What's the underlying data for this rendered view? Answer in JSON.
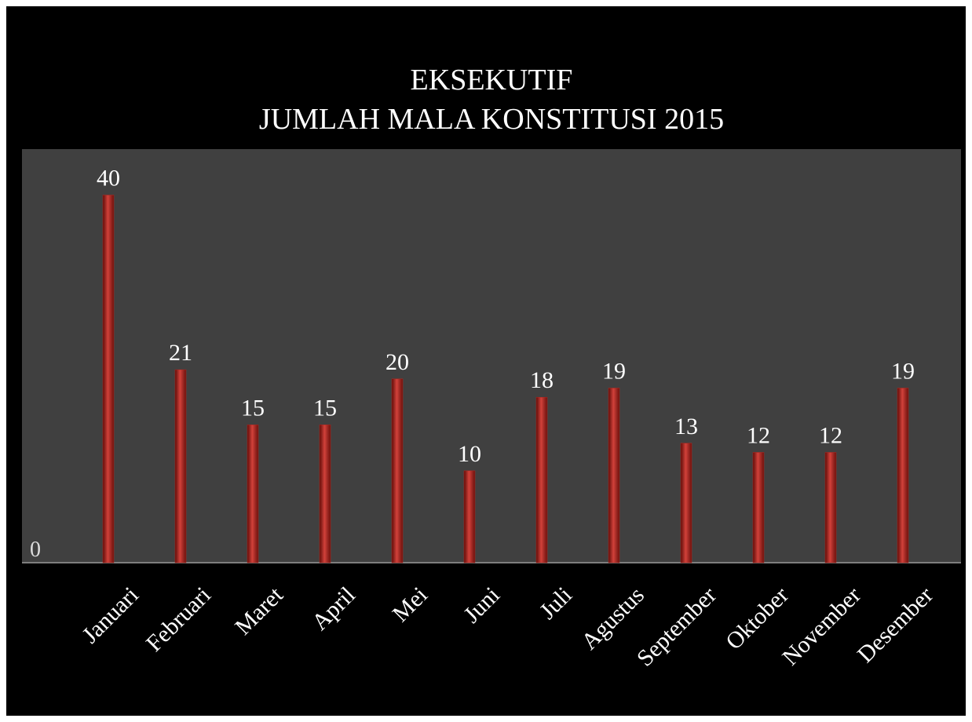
{
  "chart_data": {
    "type": "bar",
    "title": [
      "EKSEKUTIF",
      "JUMLAH MALA KONSTITUSI 2015"
    ],
    "categories": [
      "Januari",
      "Februari",
      "Maret",
      "April",
      "Mei",
      "Juni",
      "Juli",
      "Agustus",
      "September",
      "Oktober",
      "November",
      "Desember"
    ],
    "values": [
      40,
      21,
      15,
      15,
      20,
      10,
      18,
      19,
      13,
      12,
      12,
      19
    ],
    "color": "#b3261e",
    "ylim": [
      0,
      45
    ],
    "yticks": [
      0
    ],
    "grid": false
  }
}
